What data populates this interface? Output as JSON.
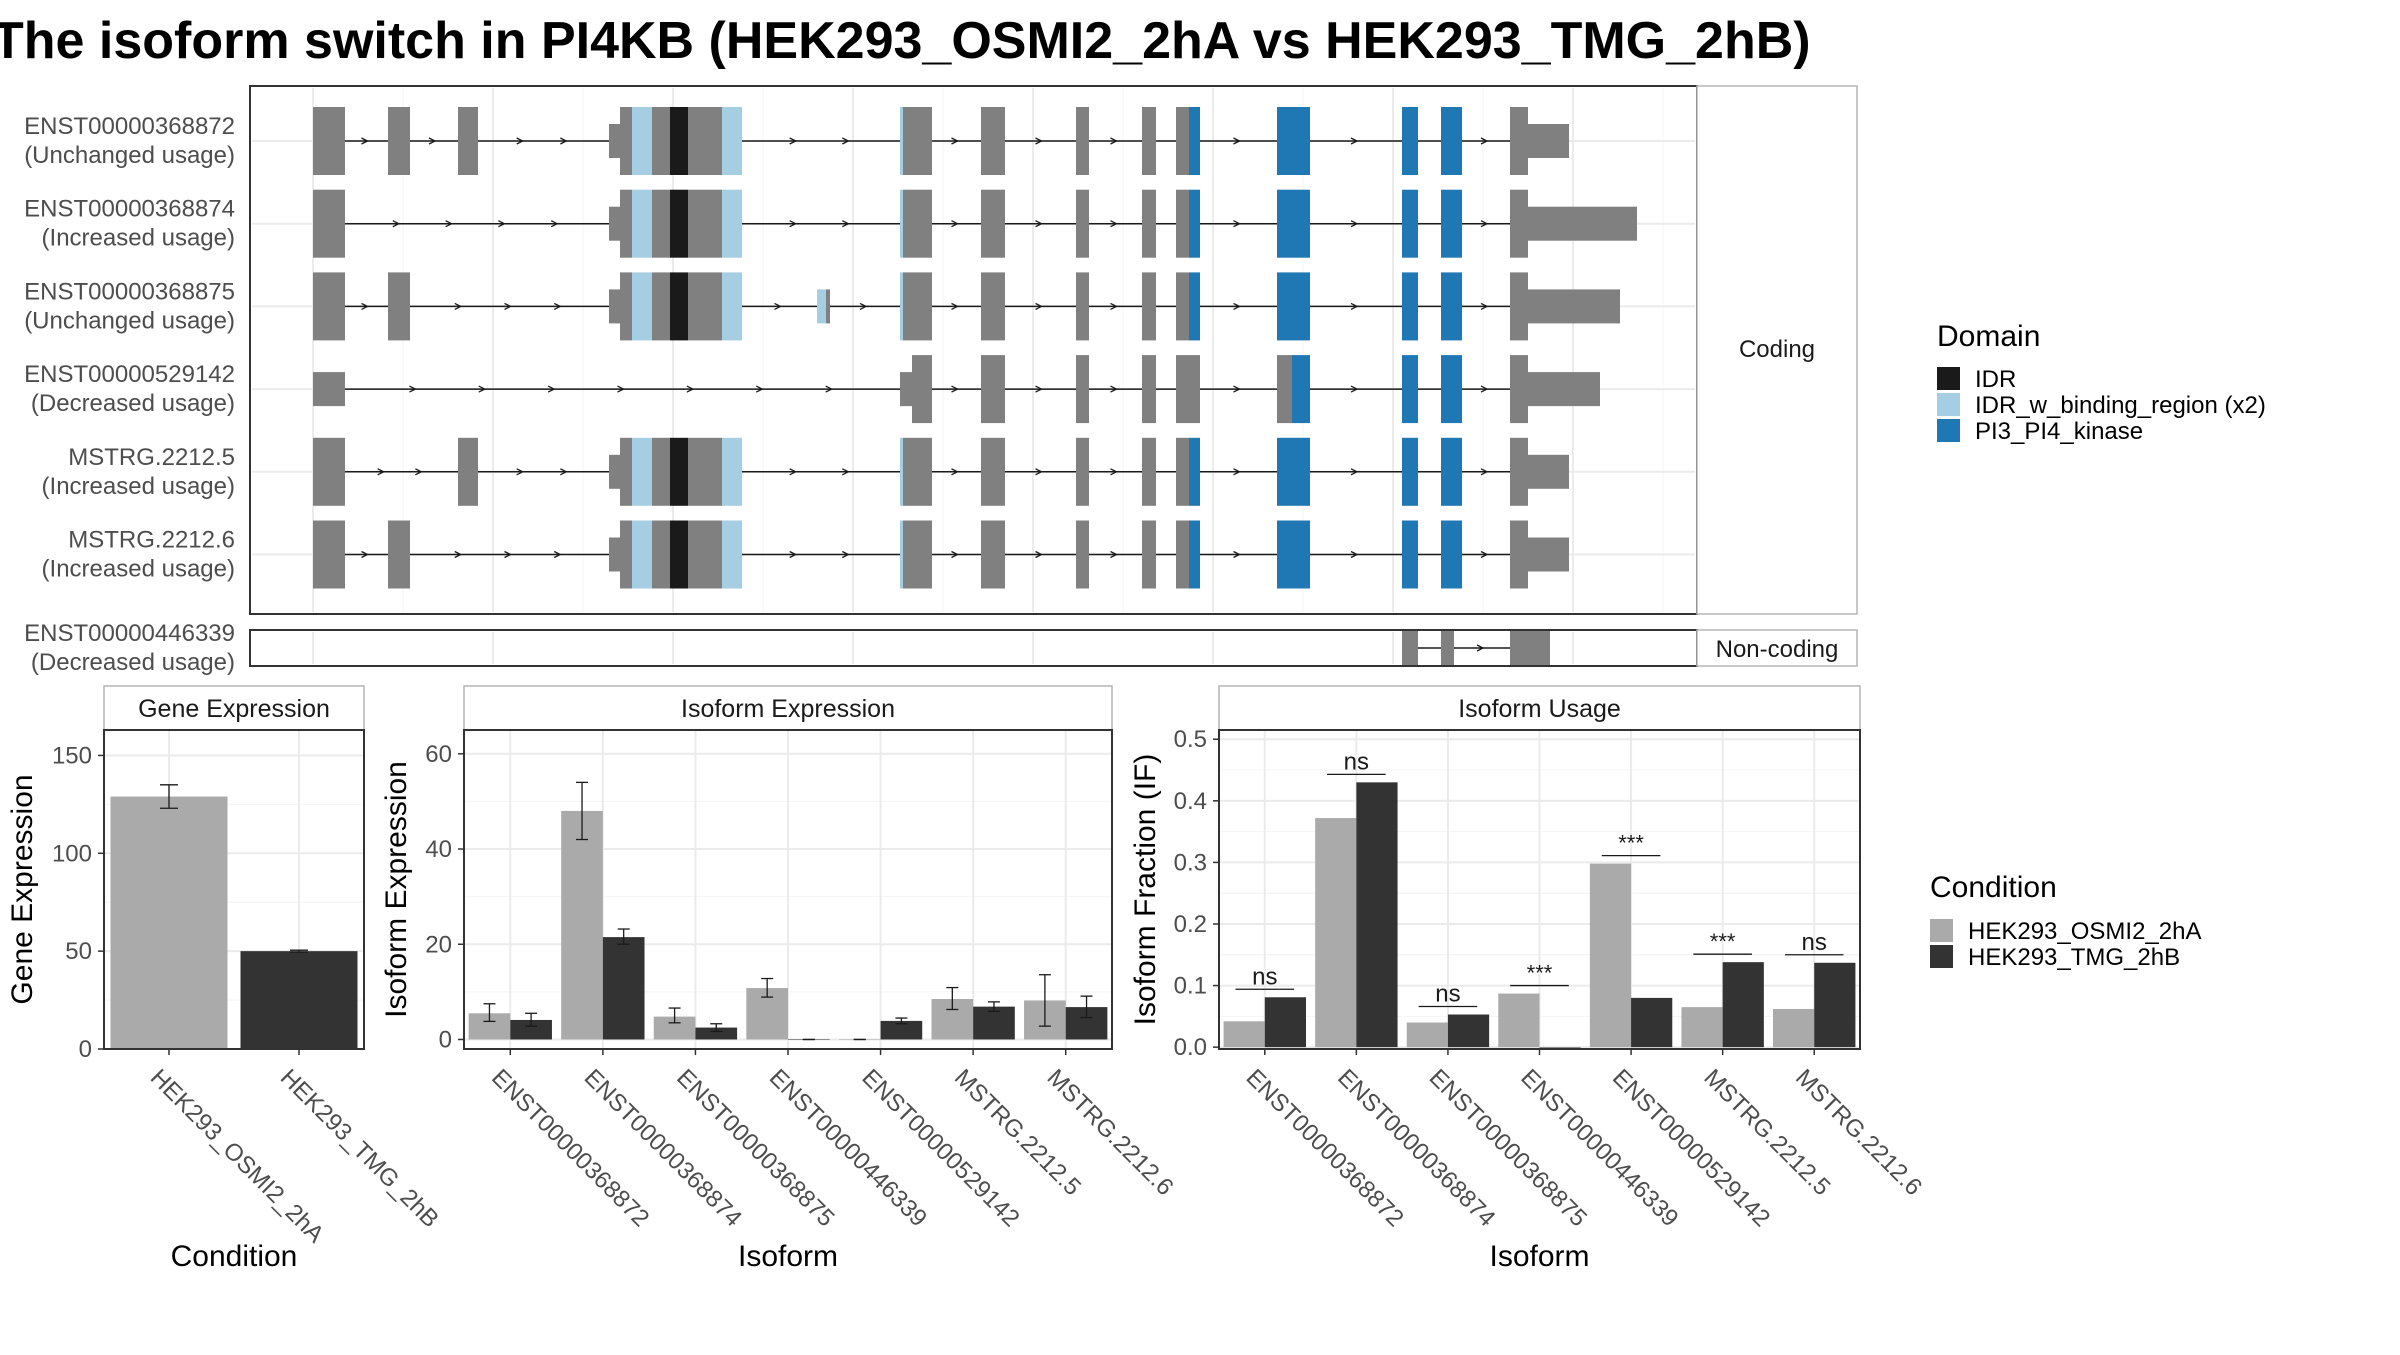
{
  "title": "The isoform switch in PI4KB (HEK293_OSMI2_2hA vs HEK293_TMG_2hB)",
  "colors": {
    "exon": "#808080",
    "IDR": "#1a1a1a",
    "IDR_w_binding_region (x2)": "#a6cee3",
    "PI3_PI4_kinase": "#1f78b4",
    "cond_a": "#aaaaaa",
    "cond_b": "#333333"
  },
  "transcripts": {
    "facets": [
      "Coding",
      "Non-coding"
    ],
    "isoforms": [
      {
        "id": "ENST00000368872",
        "usage": "(Unchanged usage)",
        "facet": "Coding"
      },
      {
        "id": "ENST00000368874",
        "usage": "(Increased usage)",
        "facet": "Coding"
      },
      {
        "id": "ENST00000368875",
        "usage": "(Unchanged usage)",
        "facet": "Coding"
      },
      {
        "id": "ENST00000529142",
        "usage": "(Decreased usage)",
        "facet": "Coding"
      },
      {
        "id": "MSTRG.2212.5",
        "usage": "(Increased usage)",
        "facet": "Coding"
      },
      {
        "id": "MSTRG.2212.6",
        "usage": "(Increased usage)",
        "facet": "Coding"
      },
      {
        "id": "ENST00000446339",
        "usage": "(Decreased usage)",
        "facet": "Non-coding"
      }
    ]
  },
  "domain_legend": {
    "title": "Domain",
    "items": [
      "IDR",
      "IDR_w_binding_region (x2)",
      "PI3_PI4_kinase"
    ]
  },
  "condition_legend": {
    "title": "Condition",
    "items": [
      "HEK293_OSMI2_2hA",
      "HEK293_TMG_2hB"
    ]
  },
  "chart_data": [
    {
      "type": "bar",
      "title": "Gene Expression",
      "xlabel": "Condition",
      "ylabel": "Gene Expression",
      "categories": [
        "HEK293_OSMI2_2hA",
        "HEK293_TMG_2hB"
      ],
      "values": [
        129,
        50
      ],
      "errors": [
        [
          123,
          135
        ],
        [
          49.5,
          50.5
        ]
      ],
      "ylim": [
        0,
        163
      ],
      "yticks": [
        0,
        50,
        100,
        150
      ]
    },
    {
      "type": "bar",
      "title": "Isoform Expression",
      "xlabel": "Isoform",
      "ylabel": "Isoform Expression",
      "categories": [
        "ENST00000368872",
        "ENST00000368874",
        "ENST00000368875",
        "ENST00000446339",
        "ENST00000529142",
        "MSTRG.2212.5",
        "MSTRG.2212.6"
      ],
      "series": [
        {
          "name": "HEK293_OSMI2_2hA",
          "values": [
            5.5,
            48,
            4.8,
            10.8,
            0,
            8.5,
            8.2
          ],
          "errors": [
            [
              3.8,
              7.5
            ],
            [
              42,
              54
            ],
            [
              3.5,
              6.6
            ],
            [
              8.9,
              12.8
            ],
            [
              0,
              0
            ],
            [
              6.3,
              10.9
            ],
            [
              2.8,
              13.6
            ]
          ]
        },
        {
          "name": "HEK293_TMG_2hB",
          "values": [
            4.1,
            21.5,
            2.5,
            0,
            3.9,
            6.9,
            6.8
          ],
          "errors": [
            [
              2.8,
              5.5
            ],
            [
              20,
              23.2
            ],
            [
              1.7,
              3.3
            ],
            [
              0,
              0
            ],
            [
              3.3,
              4.5
            ],
            [
              5.9,
              7.9
            ],
            [
              4.6,
              9.1
            ]
          ]
        }
      ],
      "ylim": [
        -2,
        65
      ],
      "yticks": [
        0,
        20,
        40,
        60
      ]
    },
    {
      "type": "bar",
      "title": "Isoform Usage",
      "xlabel": "Isoform",
      "ylabel": "Isoform Fraction (IF)",
      "categories": [
        "ENST00000368872",
        "ENST00000368874",
        "ENST00000368875",
        "ENST00000446339",
        "ENST00000529142",
        "MSTRG.2212.5",
        "MSTRG.2212.6"
      ],
      "series": [
        {
          "name": "HEK293_OSMI2_2hA",
          "values": [
            0.042,
            0.372,
            0.04,
            0.087,
            0.298,
            0.065,
            0.062
          ]
        },
        {
          "name": "HEK293_TMG_2hB",
          "values": [
            0.081,
            0.43,
            0.053,
            0,
            0.08,
            0.138,
            0.137
          ]
        }
      ],
      "significance": [
        "ns",
        "ns",
        "ns",
        "***",
        "***",
        "***",
        "ns"
      ],
      "ylim": [
        -0.003,
        0.515
      ],
      "yticks": [
        0.0,
        0.1,
        0.2,
        0.3,
        0.4,
        0.5
      ],
      "yticklabels": [
        "0.0",
        "0.1",
        "0.2",
        "0.3",
        "0.4",
        "0.5"
      ]
    }
  ]
}
